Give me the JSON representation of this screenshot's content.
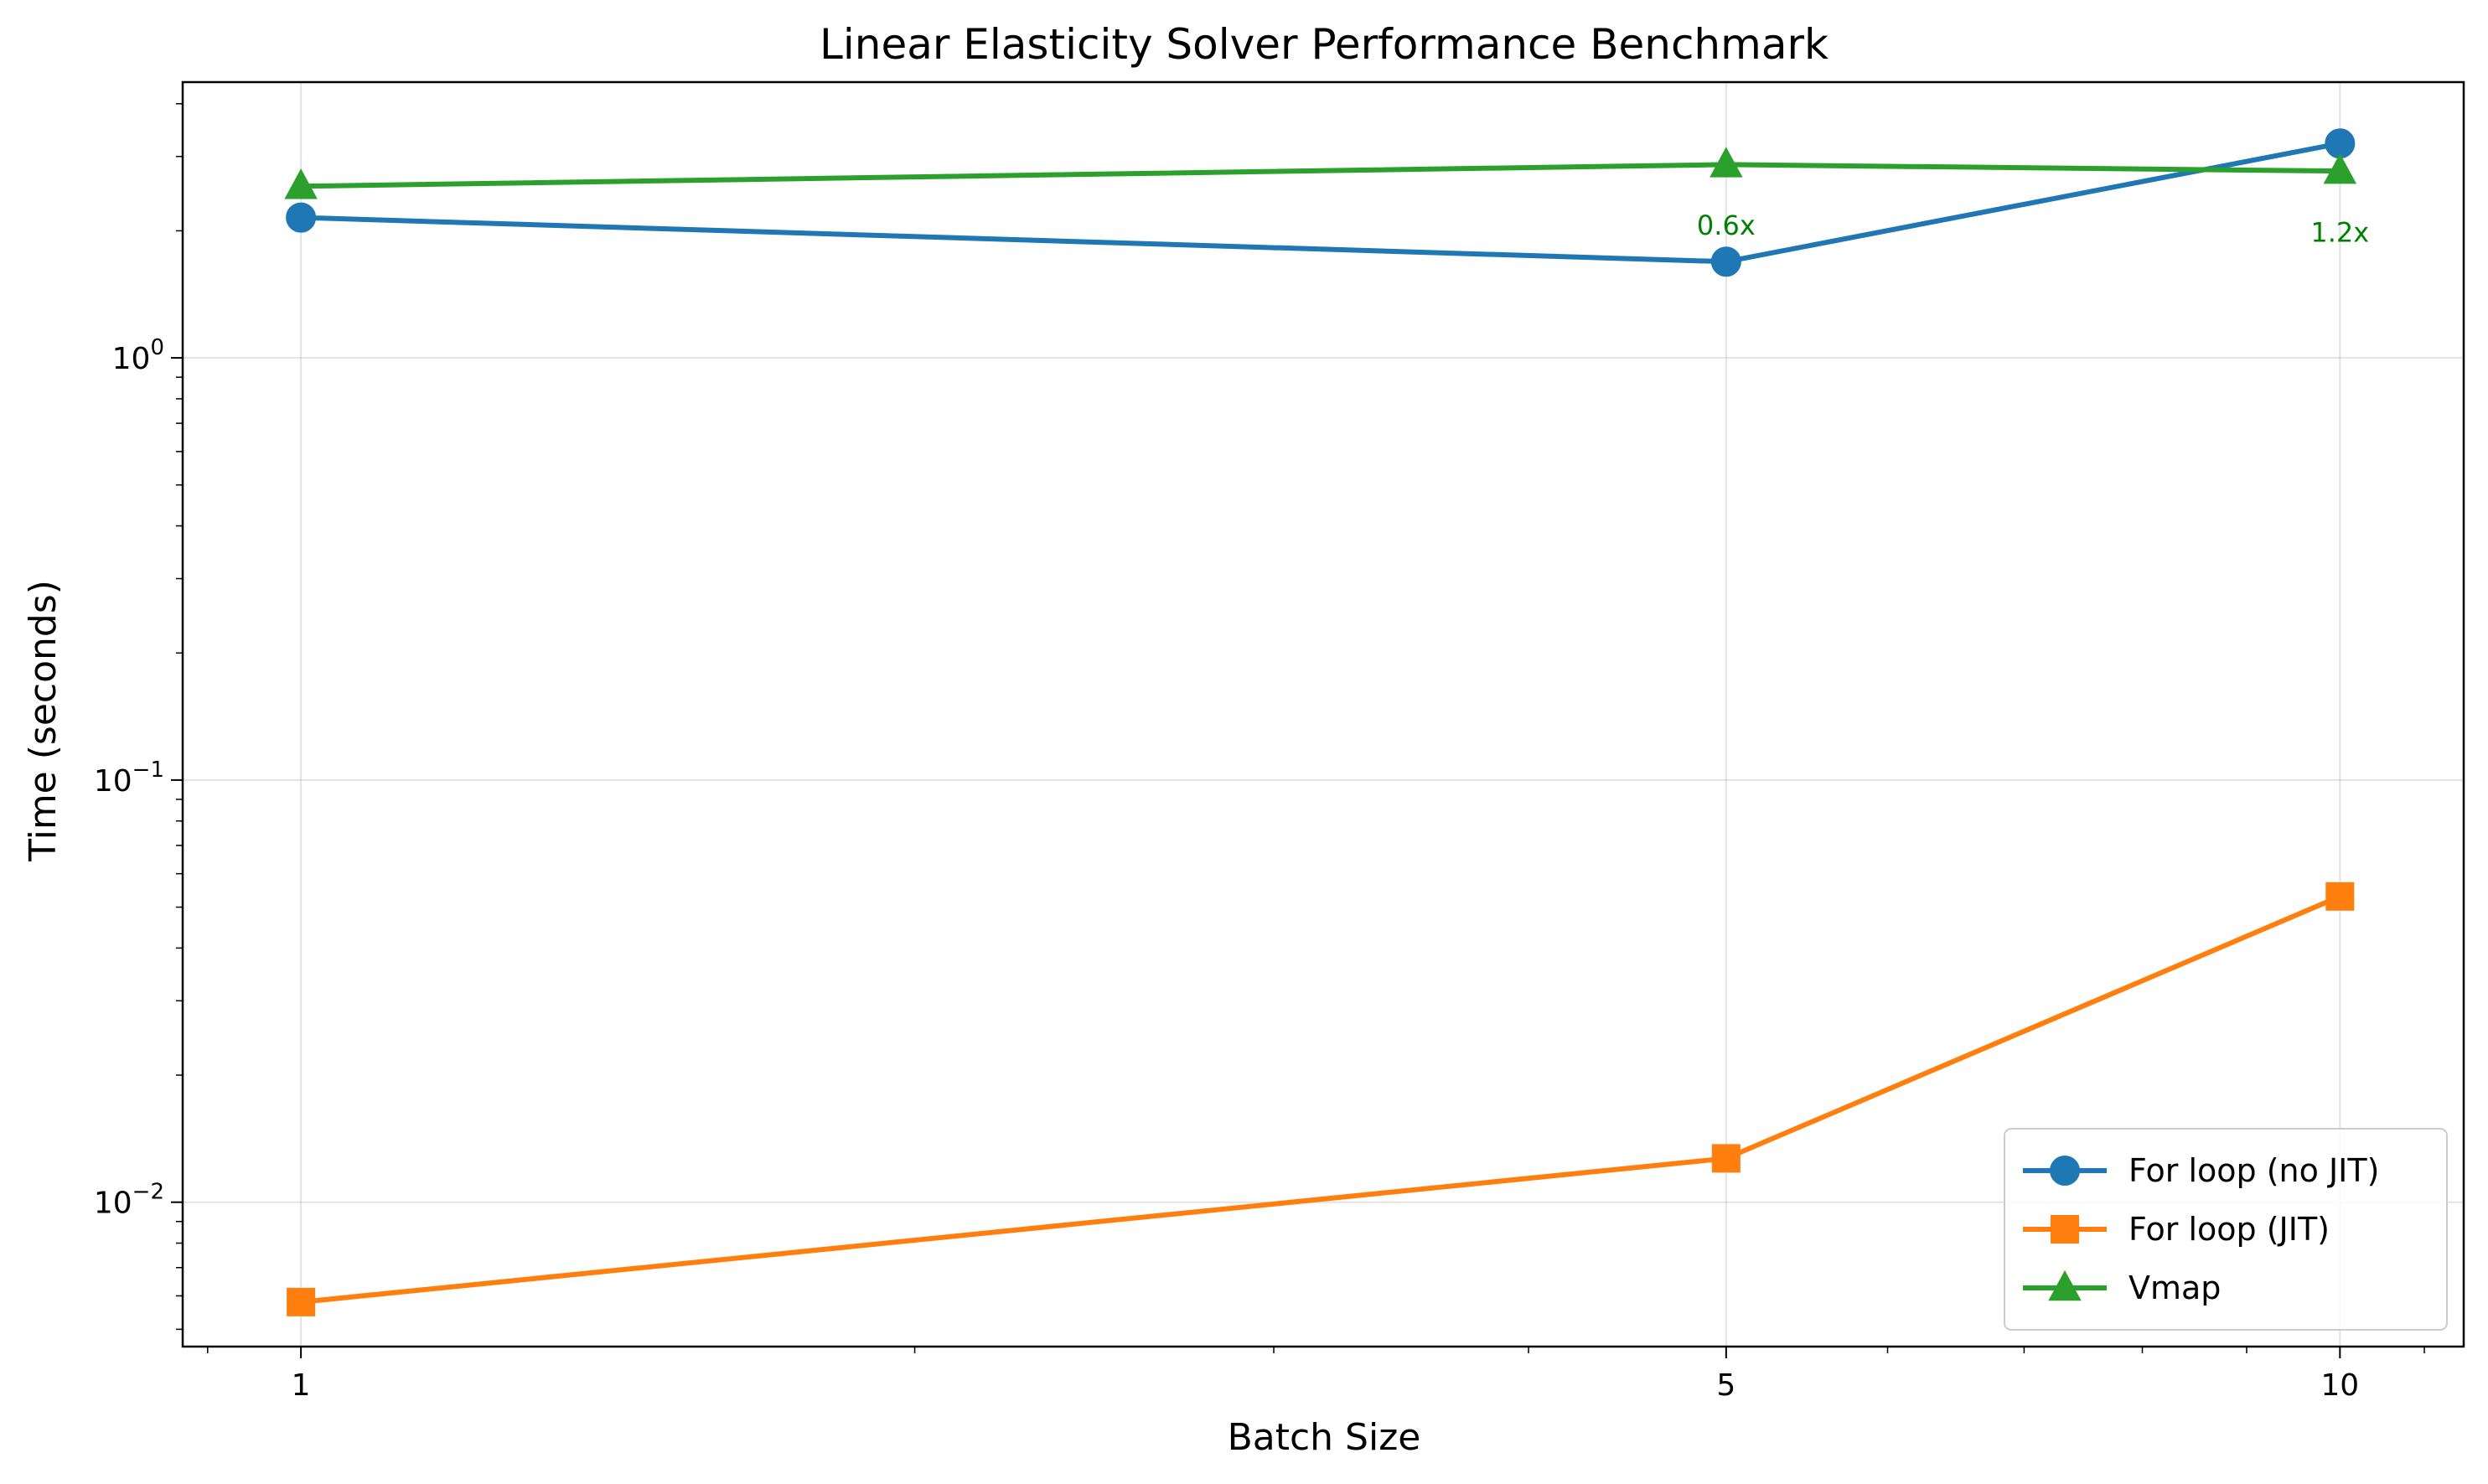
{
  "chart_data": {
    "type": "line",
    "title": "Linear Elasticity Solver Performance Benchmark",
    "xlabel": "Batch Size",
    "ylabel": "Time (seconds)",
    "x_scale": "log",
    "y_scale": "log",
    "xlim": [
      0.875,
      11.5
    ],
    "ylim": [
      0.00455,
      4.5
    ],
    "grid": true,
    "legend_position": "lower-right",
    "x_ticks": [
      {
        "value": 1,
        "label": "1"
      },
      {
        "value": 5,
        "label": "5"
      },
      {
        "value": 10,
        "label": "10"
      }
    ],
    "y_ticks": [
      {
        "value": 1,
        "base": "10",
        "exp": "0"
      },
      {
        "value": 0.1,
        "base": "10",
        "exp": "−1"
      },
      {
        "value": 0.01,
        "base": "10",
        "exp": "−2"
      }
    ],
    "x": [
      1,
      5,
      10
    ],
    "series": [
      {
        "name": "For loop (no JIT)",
        "color": "#1f77b4",
        "marker": "circle",
        "values": [
          2.15,
          1.69,
          3.22
        ]
      },
      {
        "name": "For loop (JIT)",
        "color": "#ff7f0e",
        "marker": "square",
        "values": [
          0.0058,
          0.0127,
          0.053
        ]
      },
      {
        "name": "Vmap",
        "color": "#2ca02c",
        "marker": "triangle",
        "values": [
          2.55,
          2.87,
          2.77
        ]
      }
    ],
    "annotations": [
      {
        "text": "0.6x",
        "x": 5,
        "y": 2.06,
        "color": "#008000"
      },
      {
        "text": "1.2x",
        "x": 10,
        "y": 1.98,
        "color": "#008000"
      }
    ]
  }
}
